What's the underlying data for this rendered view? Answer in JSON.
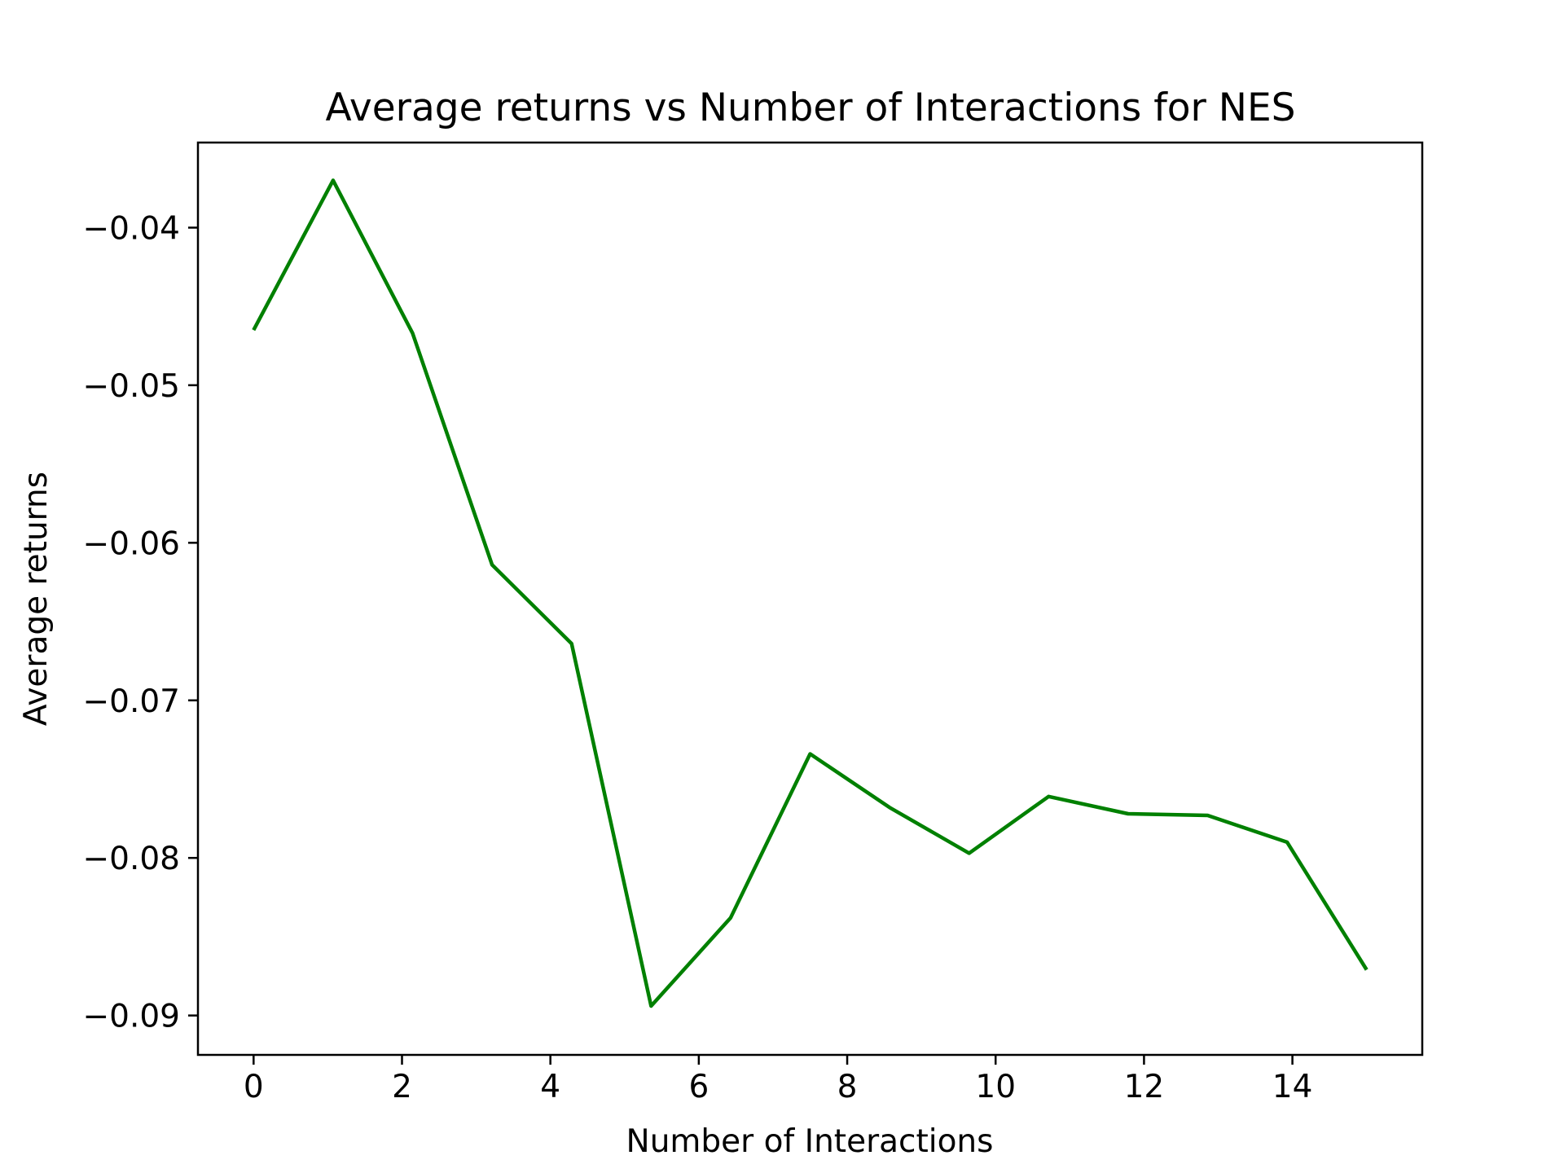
{
  "chart_data": {
    "type": "line",
    "title": "Average returns vs Number of Interactions for NES",
    "xlabel": "Number of Interactions",
    "ylabel": "Average returns",
    "xlim": [
      -0.75,
      15.75
    ],
    "ylim": [
      -0.0925,
      -0.0346
    ],
    "xticks": [
      0,
      2,
      4,
      6,
      8,
      10,
      12,
      14
    ],
    "xtick_labels": [
      "0",
      "2",
      "4",
      "6",
      "8",
      "10",
      "12",
      "14"
    ],
    "yticks": [
      -0.04,
      -0.05,
      -0.06,
      -0.07,
      -0.08,
      -0.09
    ],
    "ytick_labels": [
      "−0.04",
      "−0.05",
      "−0.06",
      "−0.07",
      "−0.08",
      "−0.09"
    ],
    "grid": false,
    "legend": false,
    "series": [
      {
        "color": "#008000",
        "x": [
          0,
          1.071,
          2.143,
          3.214,
          4.286,
          5.357,
          6.429,
          7.5,
          8.571,
          9.643,
          10.714,
          11.786,
          12.857,
          13.929,
          15
        ],
        "y": [
          -0.0465,
          -0.037,
          -0.0467,
          -0.0614,
          -0.0664,
          -0.0894,
          -0.0838,
          -0.0734,
          -0.0768,
          -0.0797,
          -0.0761,
          -0.0772,
          -0.0773,
          -0.079,
          -0.0871
        ]
      }
    ]
  }
}
